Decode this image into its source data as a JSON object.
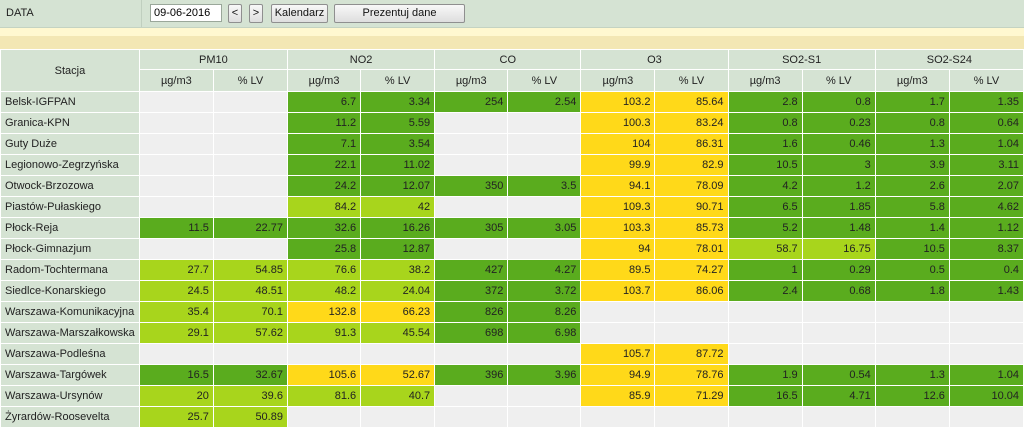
{
  "toolbar": {
    "label": "DATA",
    "date_value": "09-06-2016",
    "prev_label": "<",
    "next_label": ">",
    "calendar_label": "Kalendarz",
    "present_label": "Prezentuj dane"
  },
  "table": {
    "station_header": "Stacja",
    "groups": [
      "PM10",
      "NO2",
      "CO",
      "O3",
      "SO2-S1",
      "SO2-S24"
    ],
    "sub_headers": [
      "µg/m3",
      "% LV"
    ],
    "rows": [
      {
        "station": "Belsk-IGFPAN",
        "cells": [
          [
            "",
            0
          ],
          [
            "",
            0
          ],
          [
            "6.7",
            1
          ],
          [
            "3.34",
            1
          ],
          [
            "254",
            1
          ],
          [
            "2.54",
            1
          ],
          [
            "103.2",
            3
          ],
          [
            "85.64",
            3
          ],
          [
            "2.8",
            1
          ],
          [
            "0.8",
            1
          ],
          [
            "1.7",
            1
          ],
          [
            "1.35",
            1
          ]
        ]
      },
      {
        "station": "Granica-KPN",
        "cells": [
          [
            "",
            0
          ],
          [
            "",
            0
          ],
          [
            "11.2",
            1
          ],
          [
            "5.59",
            1
          ],
          [
            "",
            0
          ],
          [
            "",
            0
          ],
          [
            "100.3",
            3
          ],
          [
            "83.24",
            3
          ],
          [
            "0.8",
            1
          ],
          [
            "0.23",
            1
          ],
          [
            "0.8",
            1
          ],
          [
            "0.64",
            1
          ]
        ]
      },
      {
        "station": "Guty Duże",
        "cells": [
          [
            "",
            0
          ],
          [
            "",
            0
          ],
          [
            "7.1",
            1
          ],
          [
            "3.54",
            1
          ],
          [
            "",
            0
          ],
          [
            "",
            0
          ],
          [
            "104",
            3
          ],
          [
            "86.31",
            3
          ],
          [
            "1.6",
            1
          ],
          [
            "0.46",
            1
          ],
          [
            "1.3",
            1
          ],
          [
            "1.04",
            1
          ]
        ]
      },
      {
        "station": "Legionowo-Zegrzyńska",
        "cells": [
          [
            "",
            0
          ],
          [
            "",
            0
          ],
          [
            "22.1",
            1
          ],
          [
            "11.02",
            1
          ],
          [
            "",
            0
          ],
          [
            "",
            0
          ],
          [
            "99.9",
            3
          ],
          [
            "82.9",
            3
          ],
          [
            "10.5",
            1
          ],
          [
            "3",
            1
          ],
          [
            "3.9",
            1
          ],
          [
            "3.11",
            1
          ]
        ]
      },
      {
        "station": "Otwock-Brzozowa",
        "cells": [
          [
            "",
            0
          ],
          [
            "",
            0
          ],
          [
            "24.2",
            1
          ],
          [
            "12.07",
            1
          ],
          [
            "350",
            1
          ],
          [
            "3.5",
            1
          ],
          [
            "94.1",
            3
          ],
          [
            "78.09",
            3
          ],
          [
            "4.2",
            1
          ],
          [
            "1.2",
            1
          ],
          [
            "2.6",
            1
          ],
          [
            "2.07",
            1
          ]
        ]
      },
      {
        "station": "Piastów-Pułaskiego",
        "cells": [
          [
            "",
            0
          ],
          [
            "",
            0
          ],
          [
            "84.2",
            2
          ],
          [
            "42",
            2
          ],
          [
            "",
            0
          ],
          [
            "",
            0
          ],
          [
            "109.3",
            3
          ],
          [
            "90.71",
            3
          ],
          [
            "6.5",
            1
          ],
          [
            "1.85",
            1
          ],
          [
            "5.8",
            1
          ],
          [
            "4.62",
            1
          ]
        ]
      },
      {
        "station": "Płock-Reja",
        "cells": [
          [
            "11.5",
            1
          ],
          [
            "22.77",
            1
          ],
          [
            "32.6",
            1
          ],
          [
            "16.26",
            1
          ],
          [
            "305",
            1
          ],
          [
            "3.05",
            1
          ],
          [
            "103.3",
            3
          ],
          [
            "85.73",
            3
          ],
          [
            "5.2",
            1
          ],
          [
            "1.48",
            1
          ],
          [
            "1.4",
            1
          ],
          [
            "1.12",
            1
          ]
        ]
      },
      {
        "station": "Płock-Gimnazjum",
        "cells": [
          [
            "",
            0
          ],
          [
            "",
            0
          ],
          [
            "25.8",
            1
          ],
          [
            "12.87",
            1
          ],
          [
            "",
            0
          ],
          [
            "",
            0
          ],
          [
            "94",
            3
          ],
          [
            "78.01",
            3
          ],
          [
            "58.7",
            2
          ],
          [
            "16.75",
            2
          ],
          [
            "10.5",
            1
          ],
          [
            "8.37",
            1
          ]
        ]
      },
      {
        "station": "Radom-Tochtermana",
        "cells": [
          [
            "27.7",
            2
          ],
          [
            "54.85",
            2
          ],
          [
            "76.6",
            2
          ],
          [
            "38.2",
            2
          ],
          [
            "427",
            1
          ],
          [
            "4.27",
            1
          ],
          [
            "89.5",
            3
          ],
          [
            "74.27",
            3
          ],
          [
            "1",
            1
          ],
          [
            "0.29",
            1
          ],
          [
            "0.5",
            1
          ],
          [
            "0.4",
            1
          ]
        ]
      },
      {
        "station": "Siedlce-Konarskiego",
        "cells": [
          [
            "24.5",
            2
          ],
          [
            "48.51",
            2
          ],
          [
            "48.2",
            2
          ],
          [
            "24.04",
            2
          ],
          [
            "372",
            1
          ],
          [
            "3.72",
            1
          ],
          [
            "103.7",
            3
          ],
          [
            "86.06",
            3
          ],
          [
            "2.4",
            1
          ],
          [
            "0.68",
            1
          ],
          [
            "1.8",
            1
          ],
          [
            "1.43",
            1
          ]
        ]
      },
      {
        "station": "Warszawa-Komunikacyjna",
        "cells": [
          [
            "35.4",
            2
          ],
          [
            "70.1",
            2
          ],
          [
            "132.8",
            3
          ],
          [
            "66.23",
            3
          ],
          [
            "826",
            1
          ],
          [
            "8.26",
            1
          ],
          [
            "",
            0
          ],
          [
            "",
            0
          ],
          [
            "",
            0
          ],
          [
            "",
            0
          ],
          [
            "",
            0
          ],
          [
            "",
            0
          ]
        ]
      },
      {
        "station": "Warszawa-Marszałkowska",
        "cells": [
          [
            "29.1",
            2
          ],
          [
            "57.62",
            2
          ],
          [
            "91.3",
            2
          ],
          [
            "45.54",
            2
          ],
          [
            "698",
            1
          ],
          [
            "6.98",
            1
          ],
          [
            "",
            0
          ],
          [
            "",
            0
          ],
          [
            "",
            0
          ],
          [
            "",
            0
          ],
          [
            "",
            0
          ],
          [
            "",
            0
          ]
        ]
      },
      {
        "station": "Warszawa-Podleśna",
        "cells": [
          [
            "",
            0
          ],
          [
            "",
            0
          ],
          [
            "",
            0
          ],
          [
            "",
            0
          ],
          [
            "",
            0
          ],
          [
            "",
            0
          ],
          [
            "105.7",
            3
          ],
          [
            "87.72",
            3
          ],
          [
            "",
            0
          ],
          [
            "",
            0
          ],
          [
            "",
            0
          ],
          [
            "",
            0
          ]
        ]
      },
      {
        "station": "Warszawa-Targówek",
        "cells": [
          [
            "16.5",
            1
          ],
          [
            "32.67",
            1
          ],
          [
            "105.6",
            3
          ],
          [
            "52.67",
            3
          ],
          [
            "396",
            1
          ],
          [
            "3.96",
            1
          ],
          [
            "94.9",
            3
          ],
          [
            "78.76",
            3
          ],
          [
            "1.9",
            1
          ],
          [
            "0.54",
            1
          ],
          [
            "1.3",
            1
          ],
          [
            "1.04",
            1
          ]
        ]
      },
      {
        "station": "Warszawa-Ursynów",
        "cells": [
          [
            "20",
            2
          ],
          [
            "39.6",
            2
          ],
          [
            "81.6",
            2
          ],
          [
            "40.7",
            2
          ],
          [
            "",
            0
          ],
          [
            "",
            0
          ],
          [
            "85.9",
            3
          ],
          [
            "71.29",
            3
          ],
          [
            "16.5",
            1
          ],
          [
            "4.71",
            1
          ],
          [
            "12.6",
            1
          ],
          [
            "10.04",
            1
          ]
        ]
      },
      {
        "station": "Żyrardów-Roosevelta",
        "cells": [
          [
            "25.7",
            2
          ],
          [
            "50.89",
            2
          ],
          [
            "",
            0
          ],
          [
            "",
            0
          ],
          [
            "",
            0
          ],
          [
            "",
            0
          ],
          [
            "",
            0
          ],
          [
            "",
            0
          ],
          [
            "",
            0
          ],
          [
            "",
            0
          ],
          [
            "",
            0
          ],
          [
            "",
            0
          ]
        ]
      }
    ]
  }
}
